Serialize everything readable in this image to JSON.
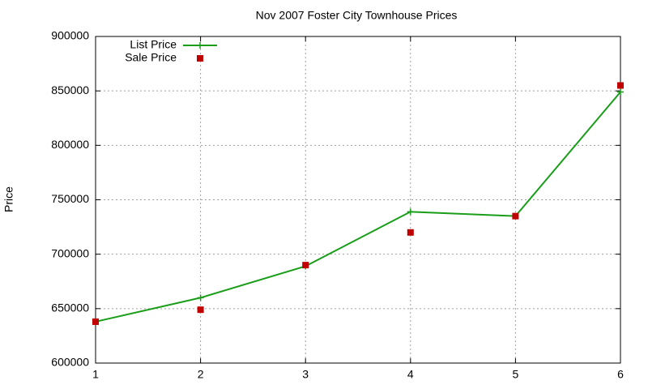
{
  "chart_data": {
    "type": "line",
    "title": "Nov 2007 Foster City Townhouse Prices",
    "y_label": "Price",
    "x": [
      1,
      2,
      3,
      4,
      5,
      6
    ],
    "series": [
      {
        "name": "List Price",
        "color": "#1a9e1a",
        "marker": "plus",
        "line": true,
        "values": [
          638000,
          660000,
          689000,
          739000,
          735000,
          849000
        ]
      },
      {
        "name": "Sale Price",
        "color": "#c00000",
        "marker": "square",
        "line": false,
        "values": [
          638000,
          649000,
          690000,
          720000,
          735000,
          855000
        ]
      }
    ],
    "xlim": [
      1,
      6
    ],
    "xticks": [
      1,
      2,
      3,
      4,
      5,
      6
    ],
    "ylim": [
      600000,
      900000
    ],
    "yticks": [
      600000,
      650000,
      700000,
      750000,
      800000,
      850000,
      900000
    ],
    "grid": true,
    "legend": "top-left"
  }
}
